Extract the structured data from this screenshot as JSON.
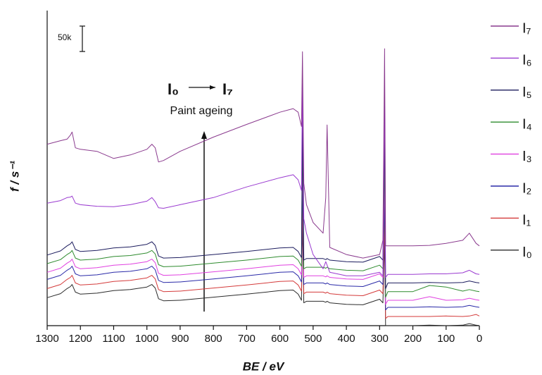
{
  "chart_data": {
    "type": "line",
    "x_label": "BE / eV",
    "y_label": "f / s⁻¹",
    "annotation_start": "I₀",
    "annotation_end": "I₇",
    "annotation_text": "Paint ageing",
    "scale_bar": {
      "value": 50000,
      "label": "50k"
    },
    "xlim": [
      1300,
      0
    ],
    "ylim": [
      0,
      620000
    ],
    "xticks": [
      1300,
      1200,
      1100,
      1000,
      900,
      800,
      700,
      600,
      500,
      400,
      300,
      200,
      100,
      0
    ],
    "x": [
      1300,
      1260,
      1240,
      1230,
      1225,
      1215,
      1200,
      1150,
      1100,
      1050,
      1000,
      985,
      975,
      965,
      950,
      900,
      800,
      700,
      600,
      560,
      545,
      535,
      532,
      528,
      520,
      500,
      470,
      462,
      458,
      450,
      400,
      350,
      300,
      290,
      285,
      282,
      275,
      250,
      200,
      150,
      100,
      50,
      30,
      10,
      0
    ],
    "series": [
      {
        "name": "I₀",
        "color": "#2b2b2b",
        "values": [
          55000,
          63000,
          73000,
          77000,
          81000,
          66000,
          62000,
          64000,
          69000,
          71000,
          76000,
          81000,
          74000,
          53000,
          49000,
          50000,
          56000,
          62000,
          69000,
          70000,
          62000,
          50000,
          210000,
          45000,
          48000,
          48000,
          48000,
          46000,
          48000,
          45000,
          42000,
          41000,
          52000,
          45000,
          168000,
          0,
          0,
          0,
          0,
          1000,
          0,
          1000,
          4000,
          1000,
          0
        ]
      },
      {
        "name": "I₁",
        "color": "#d43a3a",
        "values": [
          73000,
          81000,
          91000,
          95000,
          99000,
          84000,
          80000,
          82000,
          87000,
          89000,
          94000,
          99000,
          92000,
          71000,
          67000,
          68000,
          74000,
          80000,
          87000,
          88000,
          80000,
          68000,
          252000,
          63000,
          66000,
          66000,
          66000,
          64000,
          66000,
          63000,
          60000,
          59000,
          70000,
          63000,
          210000,
          14000,
          18000,
          18000,
          18000,
          18000,
          19000,
          18000,
          19000,
          22000,
          19000
        ]
      },
      {
        "name": "I₂",
        "color": "#2a2aa8",
        "values": [
          91000,
          99000,
          109000,
          113000,
          117000,
          102000,
          98000,
          100000,
          105000,
          107000,
          112000,
          117000,
          110000,
          89000,
          85000,
          86000,
          92000,
          98000,
          105000,
          106000,
          98000,
          86000,
          294000,
          81000,
          84000,
          84000,
          84000,
          82000,
          84000,
          81000,
          78000,
          77000,
          88000,
          81000,
          252000,
          31000,
          36000,
          36000,
          36000,
          37000,
          36000,
          37000,
          40000,
          37000,
          36000
        ]
      },
      {
        "name": "I₃",
        "color": "#e040e0",
        "values": [
          105000,
          113000,
          123000,
          127000,
          131000,
          116000,
          112000,
          114000,
          119000,
          121000,
          126000,
          131000,
          124000,
          103000,
          99000,
          100000,
          106000,
          112000,
          119000,
          120000,
          112000,
          100000,
          336000,
          95000,
          98000,
          98000,
          98000,
          96000,
          98000,
          95000,
          92000,
          91000,
          102000,
          95000,
          294000,
          42000,
          50000,
          50000,
          50000,
          57000,
          50000,
          51000,
          54000,
          51000,
          50000
        ]
      },
      {
        "name": "I₄",
        "color": "#2e8b2e",
        "values": [
          122000,
          130000,
          140000,
          144000,
          148000,
          133000,
          129000,
          131000,
          136000,
          138000,
          143000,
          148000,
          141000,
          120000,
          116000,
          117000,
          123000,
          129000,
          136000,
          137000,
          129000,
          117000,
          378000,
          112000,
          115000,
          115000,
          115000,
          113000,
          115000,
          112000,
          109000,
          108000,
          119000,
          112000,
          336000,
          56000,
          67000,
          67000,
          67000,
          79000,
          76000,
          68000,
          71000,
          68000,
          67000
        ]
      },
      {
        "name": "I₅",
        "color": "#1c1c5e",
        "values": [
          139000,
          147000,
          157000,
          161000,
          165000,
          150000,
          146000,
          148000,
          153000,
          155000,
          160000,
          165000,
          158000,
          137000,
          133000,
          134000,
          140000,
          146000,
          153000,
          154000,
          146000,
          134000,
          420000,
          129000,
          132000,
          132000,
          132000,
          130000,
          132000,
          129000,
          126000,
          125000,
          136000,
          129000,
          378000,
          73000,
          84000,
          84000,
          84000,
          85000,
          84000,
          85000,
          88000,
          85000,
          84000
        ]
      },
      {
        "name": "I₆",
        "color": "#9a3ad0",
        "values": [
          241000,
          246000,
          252000,
          253000,
          255000,
          241000,
          238000,
          235000,
          234000,
          238000,
          245000,
          252000,
          244000,
          232000,
          231000,
          238000,
          252000,
          273000,
          291000,
          297000,
          287000,
          266000,
          476000,
          210000,
          182000,
          140000,
          112000,
          126000,
          119000,
          105000,
          98000,
          98000,
          105000,
          98000,
          462000,
          95000,
          101000,
          101000,
          101000,
          102000,
          102000,
          104000,
          109000,
          102000,
          101000
        ]
      },
      {
        "name": "I₇",
        "color": "#8a3a8e",
        "values": [
          357000,
          364000,
          367000,
          375000,
          381000,
          350000,
          347000,
          343000,
          329000,
          336000,
          347000,
          357000,
          350000,
          322000,
          325000,
          343000,
          371000,
          396000,
          420000,
          427000,
          420000,
          392000,
          539000,
          280000,
          238000,
          203000,
          182000,
          252000,
          395000,
          154000,
          140000,
          133000,
          140000,
          168000,
          545000,
          157000,
          157000,
          157000,
          157000,
          158000,
          162000,
          168000,
          182000,
          162000,
          157000
        ]
      }
    ]
  }
}
